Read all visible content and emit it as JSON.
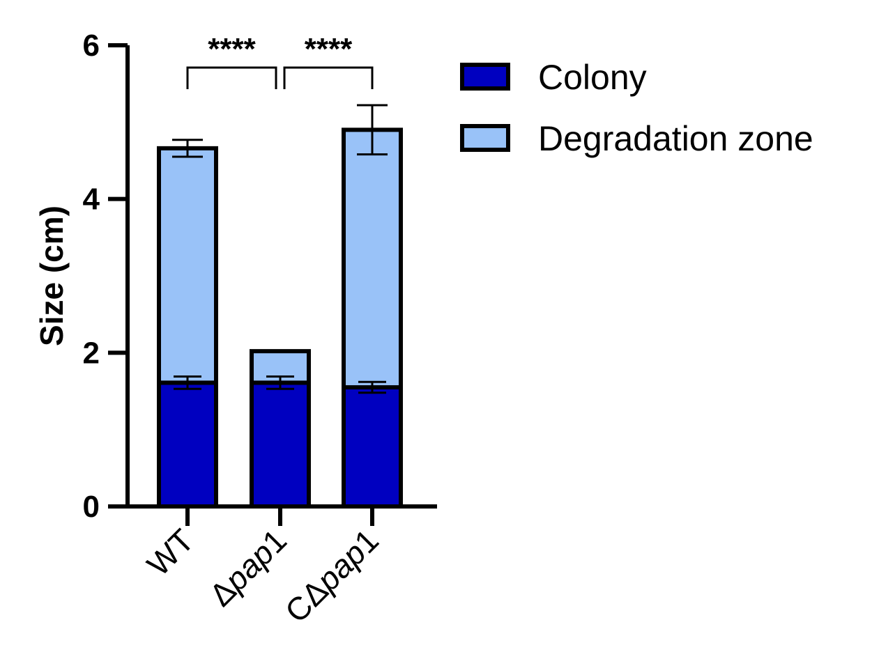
{
  "chart_data": {
    "type": "bar",
    "stacked": true,
    "categories": [
      "WT",
      "Δpap1",
      "CΔpap1"
    ],
    "category_parts": [
      {
        "prefix": "WT",
        "italic": "",
        "suffix": ""
      },
      {
        "prefix": "Δ",
        "italic": "pap",
        "suffix": "1"
      },
      {
        "prefix": "CΔ",
        "italic": "pap",
        "suffix": "1"
      }
    ],
    "series": [
      {
        "name": "Colony",
        "color": "#0000c0",
        "values": [
          1.61,
          1.61,
          1.55
        ],
        "errors": [
          0.08,
          0.08,
          0.07
        ]
      },
      {
        "name": "Degradation zone",
        "color": "#99c2f8",
        "values": [
          3.05,
          0.41,
          3.35
        ],
        "errors": [
          0.11,
          0.0,
          0.32
        ]
      }
    ],
    "ylabel": "Size (cm)",
    "xlabel": "",
    "title": "",
    "ylim": [
      0,
      6
    ],
    "yticks": [
      "0",
      "2",
      "4",
      "6"
    ],
    "grid": false,
    "legend_position": "right",
    "significance": [
      {
        "from": 0,
        "to": 1,
        "label": "****"
      },
      {
        "from": 1,
        "to": 2,
        "label": "****"
      }
    ]
  }
}
